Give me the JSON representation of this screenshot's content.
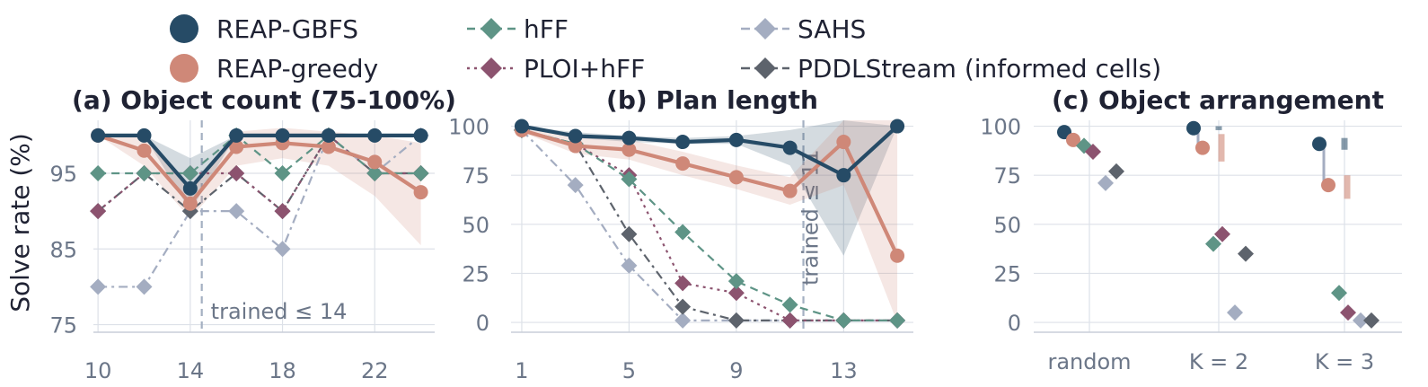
{
  "legend": {
    "items": [
      {
        "key": "reap_gbfs",
        "label": "REAP-GBFS"
      },
      {
        "key": "reap_greedy",
        "label": "REAP-greedy"
      },
      {
        "key": "hff",
        "label": "hFF"
      },
      {
        "key": "ploi",
        "label": "PLOI+hFF"
      },
      {
        "key": "sahs",
        "label": "SAHS"
      },
      {
        "key": "pddl",
        "label": "PDDLStream (informed cells)"
      }
    ]
  },
  "styles": {
    "reap_gbfs": {
      "color": "#264b66",
      "marker": "circle",
      "dash": "solid"
    },
    "reap_greedy": {
      "color": "#cf8878",
      "marker": "circle",
      "dash": "solid"
    },
    "hff": {
      "color": "#5e9486",
      "marker": "diamond",
      "dash": "dashed"
    },
    "ploi": {
      "color": "#8c536f",
      "marker": "diamond",
      "dash": "dotted"
    },
    "sahs": {
      "color": "#a4adc1",
      "marker": "diamond",
      "dash": "dashdot"
    },
    "pddl": {
      "color": "#5d636c",
      "marker": "diamond",
      "dash": "dashdot"
    }
  },
  "chart_data": [
    {
      "type": "line",
      "title": "(a) Object count (75-100%)",
      "ylabel": "Solve rate (%)",
      "xlabel": "",
      "xticks": [
        10,
        14,
        18,
        22
      ],
      "yticks": [
        75,
        85,
        95
      ],
      "xlim": [
        9.8,
        24.6
      ],
      "ylim": [
        74,
        102
      ],
      "grid": true,
      "annotation": {
        "text": "trained ≤ 14",
        "x": 14.5
      },
      "series": [
        {
          "key": "reap_gbfs",
          "x": [
            10,
            12,
            14,
            16,
            18,
            20,
            22,
            24
          ],
          "values": [
            100,
            100,
            93,
            100,
            100,
            100,
            100,
            100
          ],
          "band_lo": [
            100,
            100,
            90,
            100,
            100,
            100,
            100,
            100
          ],
          "band_hi": [
            100,
            100,
            97,
            100,
            100,
            100,
            100,
            100
          ]
        },
        {
          "key": "reap_greedy",
          "x": [
            10,
            12,
            14,
            16,
            18,
            20,
            22,
            24
          ],
          "values": [
            100,
            98,
            91,
            98.5,
            99,
            98.5,
            96.5,
            92.5
          ],
          "band_lo": [
            100,
            96,
            89,
            96,
            97,
            96,
            92,
            85.5
          ],
          "band_hi": [
            100,
            100,
            93,
            100.5,
            101,
            100.5,
            100,
            99
          ]
        },
        {
          "key": "hff",
          "x": [
            10,
            12,
            14,
            16,
            18,
            20,
            22,
            24
          ],
          "values": [
            95,
            95,
            95,
            100,
            95,
            100,
            95,
            95
          ]
        },
        {
          "key": "ploi",
          "x": [
            10,
            12,
            14,
            16,
            18,
            20,
            22,
            24
          ],
          "values": [
            90,
            95,
            95,
            95,
            90,
            100,
            95,
            95
          ]
        },
        {
          "key": "sahs",
          "x": [
            10,
            12,
            14,
            16,
            18,
            20,
            22,
            24
          ],
          "values": [
            80,
            80,
            90,
            90,
            85,
            100,
            95,
            100
          ]
        },
        {
          "key": "pddl",
          "x": [
            10,
            12,
            14,
            16,
            18,
            20,
            22,
            24
          ],
          "values": [
            90,
            95,
            90,
            95,
            90,
            100,
            95,
            95
          ]
        }
      ]
    },
    {
      "type": "line",
      "title": "(b) Plan length",
      "ylabel": "",
      "xlabel": "",
      "xticks": [
        1,
        5,
        9,
        13
      ],
      "yticks": [
        0,
        25,
        50,
        75,
        100
      ],
      "xlim": [
        0.6,
        15.6
      ],
      "ylim": [
        -5,
        103
      ],
      "grid": true,
      "annotation": {
        "text": "trained ≤ 11",
        "x": 11.5
      },
      "series": [
        {
          "key": "reap_gbfs",
          "x": [
            1,
            3,
            5,
            7,
            9,
            11,
            13,
            15
          ],
          "values": [
            100,
            95,
            94,
            92,
            93,
            89,
            75,
            100
          ],
          "band_lo": [
            100,
            94,
            92,
            91,
            91,
            80,
            34,
            100
          ],
          "band_hi": [
            100,
            97,
            95,
            94,
            95,
            98,
            103,
            100
          ]
        },
        {
          "key": "reap_greedy",
          "x": [
            1,
            3,
            5,
            7,
            9,
            11,
            13,
            15
          ],
          "values": [
            98,
            90,
            88,
            81,
            74,
            67,
            92,
            34
          ],
          "band_lo": [
            97,
            86,
            83,
            75,
            68,
            60,
            70,
            0
          ],
          "band_hi": [
            99,
            94,
            93,
            87,
            80,
            74,
            103,
            103
          ]
        },
        {
          "key": "hff",
          "x": [
            1,
            3,
            5,
            7,
            9,
            11,
            13,
            15
          ],
          "values": [
            98,
            91,
            73,
            46,
            21,
            9,
            1,
            1
          ]
        },
        {
          "key": "ploi",
          "x": [
            1,
            3,
            5,
            7,
            9,
            11,
            13,
            15
          ],
          "values": [
            98,
            91,
            75,
            20,
            15,
            1,
            1,
            1
          ]
        },
        {
          "key": "sahs",
          "x": [
            1,
            3,
            5,
            7,
            9,
            11,
            13,
            15
          ],
          "values": [
            98,
            70,
            29,
            1,
            1,
            1,
            1,
            1
          ]
        },
        {
          "key": "pddl",
          "x": [
            1,
            3,
            5,
            7,
            9,
            11,
            13,
            15
          ],
          "values": [
            98,
            91,
            45,
            8,
            1,
            1,
            1,
            1
          ]
        }
      ]
    },
    {
      "type": "scatter",
      "title": "(c) Object arrangement",
      "ylabel": "",
      "xlabel": "",
      "categories": [
        "random",
        "K = 2",
        "K = 3"
      ],
      "yticks": [
        0,
        25,
        50,
        75,
        100
      ],
      "ylim": [
        -5,
        103
      ],
      "grid": true,
      "series": [
        {
          "key": "reap_gbfs",
          "values": [
            97,
            99,
            91
          ]
        },
        {
          "key": "reap_greedy",
          "values": [
            93,
            89,
            70
          ]
        },
        {
          "key": "hff",
          "values": [
            90,
            40,
            15
          ]
        },
        {
          "key": "ploi",
          "values": [
            87,
            45,
            5
          ]
        },
        {
          "key": "sahs",
          "values": [
            71,
            5,
            1
          ]
        },
        {
          "key": "pddl",
          "values": [
            77,
            35,
            1
          ]
        }
      ],
      "reference_ticks": [
        {
          "category": "K = 2",
          "key": "reap_gbfs",
          "lo": 98,
          "hi": 100
        },
        {
          "category": "K = 2",
          "key": "reap_greedy",
          "lo": 82,
          "hi": 96
        },
        {
          "category": "K = 3",
          "key": "reap_gbfs",
          "lo": 88,
          "hi": 94
        },
        {
          "category": "K = 3",
          "key": "reap_greedy",
          "lo": 63,
          "hi": 75
        }
      ]
    }
  ]
}
